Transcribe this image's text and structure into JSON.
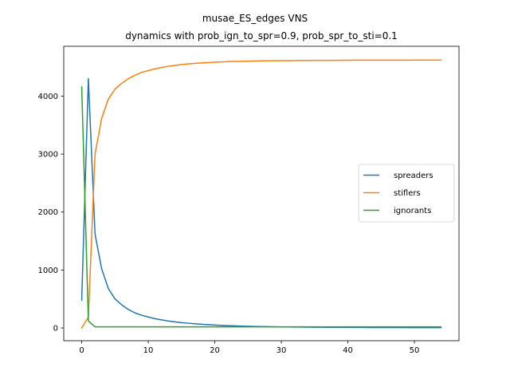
{
  "chart_data": {
    "type": "line",
    "title": "musae_ES_edges VNS",
    "subtitle": "dynamics with prob_ign_to_spr=0.9, prob_spr_to_sti=0.1",
    "xlabel": "",
    "ylabel": "",
    "xlim": [
      -2.7,
      56.7
    ],
    "ylim": [
      -220,
      4860
    ],
    "xticks": [
      0,
      10,
      20,
      30,
      40,
      50
    ],
    "yticks": [
      0,
      1000,
      2000,
      3000,
      4000
    ],
    "grid": false,
    "legend_position": "center-right",
    "x": [
      0,
      1,
      2,
      3,
      4,
      5,
      6,
      7,
      8,
      9,
      10,
      11,
      12,
      13,
      14,
      15,
      16,
      17,
      18,
      19,
      20,
      21,
      22,
      23,
      24,
      25,
      26,
      27,
      28,
      29,
      30,
      31,
      32,
      33,
      34,
      35,
      36,
      37,
      38,
      39,
      40,
      41,
      42,
      43,
      44,
      45,
      46,
      47,
      48,
      49,
      50,
      51,
      52,
      53,
      54
    ],
    "series": [
      {
        "name": "spreaders",
        "color": "#1f77b4",
        "values": [
          480,
          4300,
          1620,
          1020,
          680,
          500,
          400,
          320,
          260,
          220,
          190,
          160,
          140,
          120,
          105,
          92,
          82,
          72,
          64,
          57,
          50,
          45,
          40,
          36,
          32,
          29,
          26,
          24,
          22,
          20,
          18,
          17,
          16,
          15,
          14,
          13,
          12,
          11,
          11,
          10,
          10,
          9,
          9,
          8,
          8,
          8,
          7,
          7,
          7,
          6,
          6,
          6,
          6,
          5,
          5
        ]
      },
      {
        "name": "stiflers",
        "color": "#ff7f0e",
        "values": [
          0,
          190,
          3000,
          3620,
          3950,
          4120,
          4220,
          4300,
          4360,
          4410,
          4440,
          4470,
          4495,
          4515,
          4530,
          4545,
          4555,
          4565,
          4573,
          4580,
          4585,
          4590,
          4595,
          4598,
          4600,
          4603,
          4606,
          4608,
          4610,
          4611,
          4612,
          4613,
          4614,
          4615,
          4616,
          4617,
          4617,
          4618,
          4618,
          4619,
          4619,
          4620,
          4620,
          4620,
          4620,
          4621,
          4621,
          4621,
          4621,
          4621,
          4622,
          4622,
          4622,
          4622,
          4622
        ]
      },
      {
        "name": "ignorants",
        "color": "#2ca02c",
        "values": [
          4160,
          120,
          20,
          19,
          19,
          19,
          19,
          19,
          19,
          19,
          19,
          19,
          19,
          19,
          19,
          19,
          19,
          19,
          19,
          19,
          19,
          19,
          19,
          19,
          19,
          19,
          19,
          19,
          19,
          19,
          19,
          19,
          19,
          19,
          19,
          19,
          19,
          19,
          19,
          19,
          19,
          19,
          19,
          19,
          19,
          19,
          19,
          19,
          19,
          19,
          19,
          19,
          19,
          19,
          19
        ]
      }
    ]
  }
}
